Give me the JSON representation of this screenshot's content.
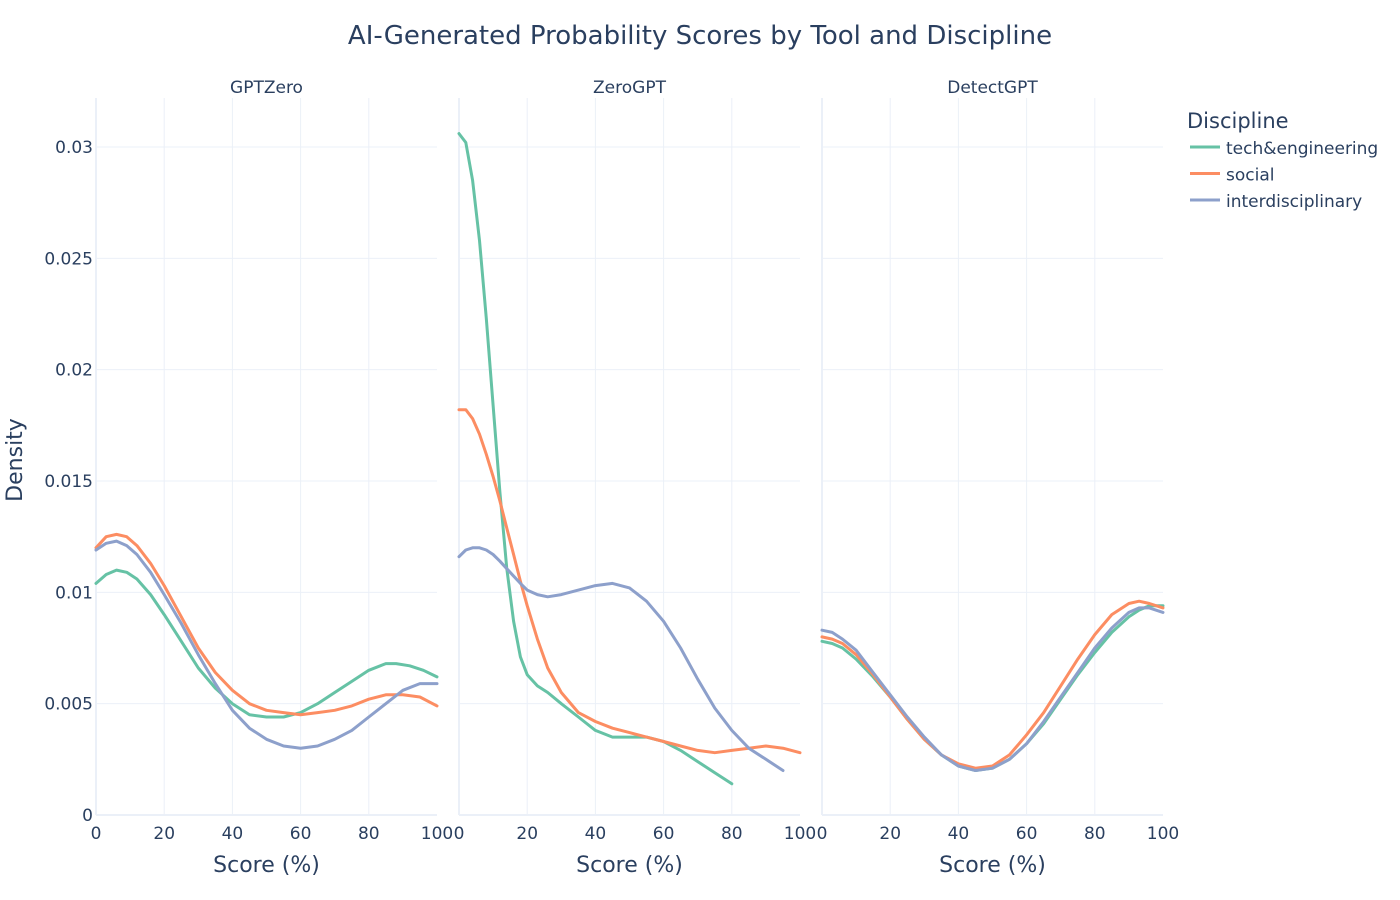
{
  "chart_data": {
    "type": "line",
    "title": "AI-Generated Probability Scores by Tool and Discipline",
    "ylabel": "Density",
    "xlabel": "Score (%)",
    "xlim": [
      0,
      100
    ],
    "ylim": [
      0,
      0.0322
    ],
    "x_ticks": [
      "0",
      "20",
      "40",
      "60",
      "80",
      "100"
    ],
    "y_ticks": [
      "0",
      "0.005",
      "0.01",
      "0.015",
      "0.02",
      "0.025",
      "0.03"
    ],
    "y_tick_values": [
      0,
      0.005,
      0.01,
      0.015,
      0.02,
      0.025,
      0.03
    ],
    "grid": true,
    "legend": {
      "title": "Discipline",
      "position": "top-right",
      "items": [
        "tech&engineering",
        "social",
        "interdisciplinary"
      ]
    },
    "colors": {
      "tech&engineering": "#66c2a5",
      "social": "#fc8d62",
      "interdisciplinary": "#8da0cb"
    },
    "panels": [
      {
        "subtitle": "GPTZero",
        "series": [
          {
            "name": "tech&engineering",
            "x": [
              0,
              3,
              6,
              9,
              12,
              16,
              20,
              25,
              30,
              35,
              40,
              45,
              50,
              55,
              60,
              65,
              70,
              75,
              80,
              85,
              88,
              92,
              96,
              100
            ],
            "y": [
              0.0104,
              0.0108,
              0.011,
              0.0109,
              0.0106,
              0.0099,
              0.009,
              0.0078,
              0.0066,
              0.0057,
              0.005,
              0.0045,
              0.0044,
              0.0044,
              0.0046,
              0.005,
              0.0055,
              0.006,
              0.0065,
              0.0068,
              0.0068,
              0.0067,
              0.0065,
              0.0062
            ]
          },
          {
            "name": "social",
            "x": [
              0,
              3,
              6,
              9,
              12,
              16,
              20,
              25,
              30,
              35,
              40,
              45,
              50,
              55,
              60,
              65,
              70,
              75,
              80,
              85,
              90,
              95,
              100
            ],
            "y": [
              0.012,
              0.0125,
              0.0126,
              0.0125,
              0.0121,
              0.0113,
              0.0103,
              0.0089,
              0.0075,
              0.0064,
              0.0056,
              0.005,
              0.0047,
              0.0046,
              0.0045,
              0.0046,
              0.0047,
              0.0049,
              0.0052,
              0.0054,
              0.0054,
              0.0053,
              0.0049
            ]
          },
          {
            "name": "interdisciplinary",
            "x": [
              0,
              3,
              6,
              9,
              12,
              16,
              20,
              25,
              30,
              35,
              40,
              45,
              50,
              55,
              60,
              65,
              70,
              75,
              80,
              85,
              90,
              95,
              100
            ],
            "y": [
              0.0119,
              0.0122,
              0.0123,
              0.0121,
              0.0117,
              0.0109,
              0.0099,
              0.0086,
              0.0072,
              0.0059,
              0.0047,
              0.0039,
              0.0034,
              0.0031,
              0.003,
              0.0031,
              0.0034,
              0.0038,
              0.0044,
              0.005,
              0.0056,
              0.0059,
              0.0059
            ]
          }
        ]
      },
      {
        "subtitle": "ZeroGPT",
        "series": [
          {
            "name": "tech&engineering",
            "x": [
              0,
              2,
              4,
              6,
              8,
              10,
              12,
              14,
              16,
              18,
              20,
              23,
              26,
              30,
              35,
              40,
              45,
              50,
              55,
              60,
              65,
              70,
              75,
              80
            ],
            "y": [
              0.0306,
              0.0302,
              0.0285,
              0.0258,
              0.0223,
              0.0184,
              0.0145,
              0.0111,
              0.0087,
              0.0071,
              0.0063,
              0.0058,
              0.0055,
              0.005,
              0.0044,
              0.0038,
              0.0035,
              0.0035,
              0.0035,
              0.0033,
              0.0029,
              0.0024,
              0.0019,
              0.0014
            ]
          },
          {
            "name": "social",
            "x": [
              0,
              2,
              4,
              6,
              8,
              10,
              12,
              14,
              16,
              18,
              20,
              23,
              26,
              30,
              35,
              40,
              45,
              50,
              55,
              60,
              65,
              70,
              75,
              80,
              85,
              90,
              95,
              100
            ],
            "y": [
              0.0182,
              0.0182,
              0.0178,
              0.0171,
              0.0162,
              0.0152,
              0.0141,
              0.0129,
              0.0117,
              0.0105,
              0.0094,
              0.0079,
              0.0066,
              0.0055,
              0.0046,
              0.0042,
              0.0039,
              0.0037,
              0.0035,
              0.0033,
              0.0031,
              0.0029,
              0.0028,
              0.0029,
              0.003,
              0.0031,
              0.003,
              0.0028
            ]
          },
          {
            "name": "interdisciplinary",
            "x": [
              0,
              2,
              4,
              6,
              8,
              10,
              12,
              15,
              18,
              20,
              23,
              26,
              30,
              35,
              40,
              45,
              50,
              55,
              60,
              65,
              70,
              75,
              80,
              85,
              90,
              95
            ],
            "y": [
              0.0116,
              0.0119,
              0.012,
              0.012,
              0.0119,
              0.0117,
              0.0114,
              0.0109,
              0.0104,
              0.0101,
              0.0099,
              0.0098,
              0.0099,
              0.0101,
              0.0103,
              0.0104,
              0.0102,
              0.0096,
              0.0087,
              0.0075,
              0.0061,
              0.0048,
              0.0038,
              0.003,
              0.0025,
              0.002
            ]
          }
        ]
      },
      {
        "subtitle": "DetectGPT",
        "series": [
          {
            "name": "tech&engineering",
            "x": [
              0,
              3,
              6,
              10,
              15,
              20,
              25,
              30,
              35,
              40,
              45,
              50,
              55,
              60,
              65,
              70,
              75,
              80,
              85,
              90,
              93,
              96,
              100
            ],
            "y": [
              0.0078,
              0.0077,
              0.0075,
              0.007,
              0.0062,
              0.0053,
              0.0043,
              0.0034,
              0.0027,
              0.0022,
              0.002,
              0.0021,
              0.0025,
              0.0032,
              0.0041,
              0.0052,
              0.0063,
              0.0073,
              0.0082,
              0.0089,
              0.0092,
              0.0094,
              0.0094
            ]
          },
          {
            "name": "social",
            "x": [
              0,
              3,
              6,
              10,
              15,
              20,
              25,
              30,
              35,
              40,
              45,
              50,
              55,
              60,
              65,
              70,
              75,
              80,
              85,
              90,
              93,
              96,
              100
            ],
            "y": [
              0.008,
              0.0079,
              0.0077,
              0.0072,
              0.0063,
              0.0053,
              0.0043,
              0.0034,
              0.0027,
              0.0023,
              0.0021,
              0.0022,
              0.0027,
              0.0036,
              0.0046,
              0.0058,
              0.007,
              0.0081,
              0.009,
              0.0095,
              0.0096,
              0.0095,
              0.0093
            ]
          },
          {
            "name": "interdisciplinary",
            "x": [
              0,
              3,
              6,
              10,
              15,
              20,
              25,
              30,
              35,
              40,
              45,
              50,
              55,
              60,
              65,
              70,
              75,
              80,
              85,
              90,
              93,
              96,
              100
            ],
            "y": [
              0.0083,
              0.0082,
              0.0079,
              0.0074,
              0.0064,
              0.0054,
              0.0044,
              0.0035,
              0.0027,
              0.0022,
              0.002,
              0.0021,
              0.0025,
              0.0032,
              0.0042,
              0.0053,
              0.0064,
              0.0075,
              0.0084,
              0.0091,
              0.0093,
              0.0093,
              0.0091
            ]
          }
        ]
      }
    ]
  }
}
